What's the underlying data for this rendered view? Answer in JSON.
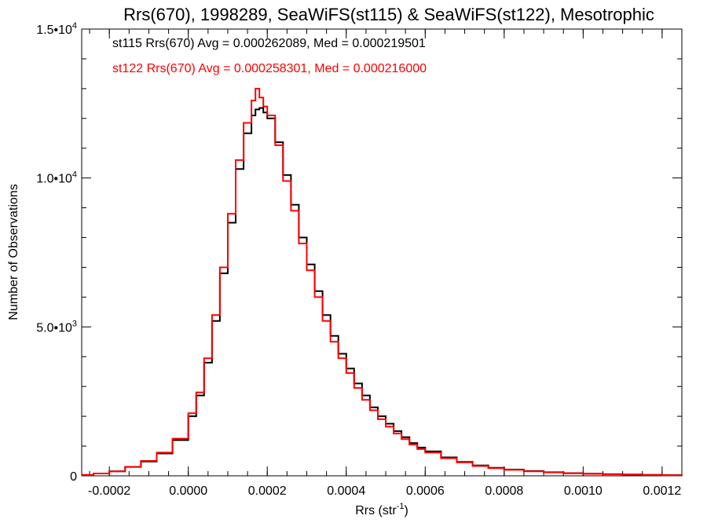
{
  "chart_data": {
    "type": "histogram",
    "title": "Rrs(670), 1998289, SeaWiFS(st115) & SeaWiFS(st122), Mesotrophic",
    "xlabel": {
      "main": "Rrs (str",
      "sup": "-1",
      "end": ")"
    },
    "ylabel": "Number of Observations",
    "xlim": [
      -0.00027,
      0.00125
    ],
    "ylim": [
      0,
      15000
    ],
    "x_ticks": [
      {
        "value": -0.0002,
        "label": "-0.0002"
      },
      {
        "value": 0.0,
        "label": "0.0000"
      },
      {
        "value": 0.0002,
        "label": "0.0002"
      },
      {
        "value": 0.0004,
        "label": "0.0004"
      },
      {
        "value": 0.0006,
        "label": "0.0006"
      },
      {
        "value": 0.0008,
        "label": "0.0008"
      },
      {
        "value": 0.001,
        "label": "0.0010"
      },
      {
        "value": 0.0012,
        "label": "0.0012"
      }
    ],
    "y_ticks": [
      {
        "value": 0,
        "base": "0",
        "sup": ""
      },
      {
        "value": 5000,
        "base": "5.0•10",
        "sup": "3"
      },
      {
        "value": 10000,
        "base": "1.0•10",
        "sup": "4"
      },
      {
        "value": 15000,
        "base": "1.5•10",
        "sup": "4"
      }
    ],
    "annotations": [
      {
        "text": "st115 Rrs(670) Avg = 0.000262089, Med = 0.000219501",
        "color": "#000000"
      },
      {
        "text": "st122 Rrs(670) Avg = 0.000258301, Med = 0.000216000",
        "color": "#ff0000"
      }
    ],
    "series": [
      {
        "color": "#000000",
        "points": [
          [
            -0.00027,
            30
          ],
          [
            -0.00024,
            80
          ],
          [
            -0.0002,
            150
          ],
          [
            -0.00016,
            300
          ],
          [
            -0.00012,
            480
          ],
          [
            -8e-05,
            750
          ],
          [
            -4e-05,
            1200
          ],
          [
            0.0,
            2000
          ],
          [
            2e-05,
            2700
          ],
          [
            4e-05,
            3800
          ],
          [
            6e-05,
            5200
          ],
          [
            8e-05,
            6800
          ],
          [
            0.0001,
            8500
          ],
          [
            0.00012,
            10300
          ],
          [
            0.00014,
            11500
          ],
          [
            0.00016,
            12100
          ],
          [
            0.00017,
            12300
          ],
          [
            0.00018,
            12350
          ],
          [
            0.00019,
            12200
          ],
          [
            0.0002,
            12000
          ],
          [
            0.00022,
            11200
          ],
          [
            0.00024,
            10100
          ],
          [
            0.00026,
            9100
          ],
          [
            0.00028,
            8000
          ],
          [
            0.0003,
            7100
          ],
          [
            0.00032,
            6200
          ],
          [
            0.00034,
            5400
          ],
          [
            0.00036,
            4700
          ],
          [
            0.00038,
            4100
          ],
          [
            0.0004,
            3600
          ],
          [
            0.00042,
            3100
          ],
          [
            0.00044,
            2700
          ],
          [
            0.00046,
            2300
          ],
          [
            0.00048,
            2000
          ],
          [
            0.0005,
            1750
          ],
          [
            0.00052,
            1500
          ],
          [
            0.00054,
            1300
          ],
          [
            0.00056,
            1100
          ],
          [
            0.00058,
            950
          ],
          [
            0.0006,
            820
          ],
          [
            0.00064,
            620
          ],
          [
            0.00068,
            470
          ],
          [
            0.00072,
            350
          ],
          [
            0.00076,
            270
          ],
          [
            0.0008,
            210
          ],
          [
            0.00085,
            160
          ],
          [
            0.0009,
            120
          ],
          [
            0.00095,
            90
          ],
          [
            0.001,
            70
          ],
          [
            0.00105,
            55
          ],
          [
            0.0011,
            45
          ],
          [
            0.00115,
            35
          ],
          [
            0.0012,
            25
          ],
          [
            0.00125,
            20
          ]
        ]
      },
      {
        "color": "#ff0000",
        "points": [
          [
            -0.00027,
            30
          ],
          [
            -0.00024,
            80
          ],
          [
            -0.0002,
            150
          ],
          [
            -0.00016,
            300
          ],
          [
            -0.00012,
            500
          ],
          [
            -8e-05,
            780
          ],
          [
            -4e-05,
            1250
          ],
          [
            0.0,
            2100
          ],
          [
            2e-05,
            2800
          ],
          [
            4e-05,
            3950
          ],
          [
            6e-05,
            5400
          ],
          [
            8e-05,
            7000
          ],
          [
            0.0001,
            8800
          ],
          [
            0.00012,
            10600
          ],
          [
            0.00014,
            11850
          ],
          [
            0.00016,
            12600
          ],
          [
            0.00017,
            13000
          ],
          [
            0.00018,
            12700
          ],
          [
            0.00019,
            12400
          ],
          [
            0.0002,
            12100
          ],
          [
            0.00022,
            11100
          ],
          [
            0.00024,
            9900
          ],
          [
            0.00026,
            8900
          ],
          [
            0.00028,
            7800
          ],
          [
            0.0003,
            6900
          ],
          [
            0.00032,
            6000
          ],
          [
            0.00034,
            5200
          ],
          [
            0.00036,
            4500
          ],
          [
            0.00038,
            3950
          ],
          [
            0.0004,
            3450
          ],
          [
            0.00042,
            2950
          ],
          [
            0.00044,
            2550
          ],
          [
            0.00046,
            2200
          ],
          [
            0.00048,
            1900
          ],
          [
            0.0005,
            1650
          ],
          [
            0.00052,
            1420
          ],
          [
            0.00054,
            1230
          ],
          [
            0.00056,
            1050
          ],
          [
            0.00058,
            900
          ],
          [
            0.0006,
            780
          ],
          [
            0.00064,
            590
          ],
          [
            0.00068,
            450
          ],
          [
            0.00072,
            330
          ],
          [
            0.00076,
            255
          ],
          [
            0.0008,
            200
          ],
          [
            0.00085,
            150
          ],
          [
            0.0009,
            115
          ],
          [
            0.00095,
            85
          ],
          [
            0.001,
            65
          ],
          [
            0.00105,
            50
          ],
          [
            0.0011,
            40
          ],
          [
            0.00115,
            30
          ],
          [
            0.0012,
            22
          ],
          [
            0.00125,
            18
          ]
        ]
      }
    ]
  }
}
